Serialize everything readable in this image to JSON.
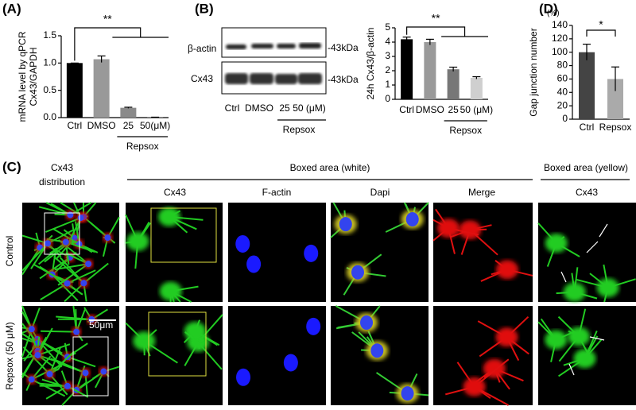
{
  "chart_data": [
    {
      "type": "bar",
      "panel": "(A)",
      "ylabel": [
        "mRNA level by qPCR",
        "Cx43/GAPDH"
      ],
      "categories": [
        "Ctrl",
        "DMSO",
        "25",
        "50(μM)"
      ],
      "values": [
        1.0,
        1.07,
        0.18,
        0.005
      ],
      "errors": [
        0,
        0.06,
        0.01,
        0.003
      ],
      "colors": [
        "#000000",
        "#999999",
        "#8a8a8a",
        "#8a8a8a"
      ],
      "ylim": [
        0,
        1.5
      ],
      "yticks": [
        {
          "value": 0,
          "label": "0.0"
        },
        0.5,
        {
          "value": 1,
          "label": "1.0"
        },
        1.5
      ],
      "group_label": "Repsox",
      "significance": "**"
    },
    {
      "type": "bar",
      "panel": "(B)",
      "ylabel": [
        "24h Cx43/β-actin"
      ],
      "categories": [
        "Ctrl",
        "DMSO",
        "25",
        "50 (μM)"
      ],
      "values": [
        4.2,
        4.0,
        2.1,
        1.5
      ],
      "errors": [
        0.15,
        0.2,
        0.15,
        0.08
      ],
      "colors": [
        "#000000",
        "#9a9a9a",
        "#777777",
        "#cfcfcf"
      ],
      "ylim": [
        0,
        5
      ],
      "yticks": [
        0,
        1,
        2,
        3,
        4,
        5
      ],
      "group_label": "Repsox",
      "significance": "**"
    },
    {
      "type": "bar",
      "panel": "(D)",
      "ylabel": [
        "Gap junction number"
      ],
      "unit_label": "(%)",
      "categories": [
        "Ctrl",
        "Repsox"
      ],
      "values": [
        100,
        60
      ],
      "errors": [
        12,
        18
      ],
      "colors": [
        "#444444",
        "#aaaaaa"
      ],
      "ylim": [
        0,
        140
      ],
      "yticks": [
        0,
        20,
        40,
        60,
        80,
        100,
        120,
        140
      ],
      "significance": "*"
    }
  ],
  "blot": {
    "rows": [
      "β-actin",
      "Cx43"
    ],
    "marker_labels": [
      "-43kDa",
      "-43kDa"
    ],
    "lanes": [
      "Ctrl",
      "DMSO",
      "25",
      "50 (μM)"
    ],
    "group_label": "Repsox"
  },
  "panel_c": {
    "label": "(C)",
    "first_column": [
      "Cx43",
      "distribution"
    ],
    "groups": [
      "Boxed area (white)",
      "Boxed area (yellow)"
    ],
    "columns": [
      "Cx43",
      "F-actin",
      "Dapi",
      "Merge",
      "Cx43"
    ],
    "rows": [
      "Control",
      "Repsox (50 μM)"
    ],
    "scale_bar": "50μm"
  }
}
